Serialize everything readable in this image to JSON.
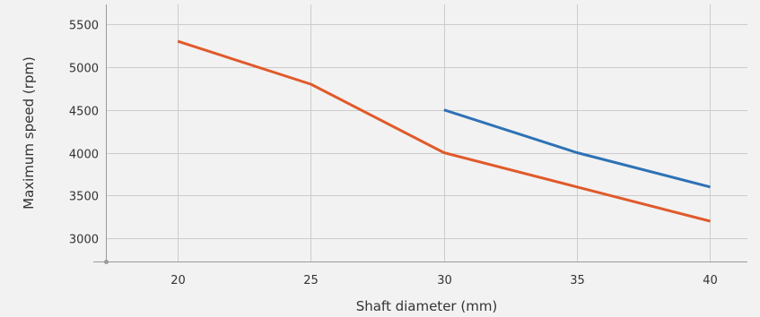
{
  "chart_data": {
    "type": "line",
    "title": "",
    "xlabel": "Shaft diameter (mm)",
    "ylabel": "Maximum speed (rpm)",
    "x_ticks": [
      20,
      25,
      30,
      35,
      40
    ],
    "y_ticks": [
      3000,
      3500,
      4000,
      4500,
      5000,
      5500
    ],
    "xlim": [
      17.3,
      41.4
    ],
    "ylim": [
      2730,
      5730
    ],
    "grid": true,
    "legend": "none",
    "series": [
      {
        "color": "#e05a2b",
        "points": [
          {
            "x": 20,
            "y": 5300
          },
          {
            "x": 25,
            "y": 4800
          },
          {
            "x": 30,
            "y": 4000
          },
          {
            "x": 35,
            "y": 3600
          },
          {
            "x": 40,
            "y": 3200
          }
        ]
      },
      {
        "color": "#2e72b6",
        "points": [
          {
            "x": 30,
            "y": 4500
          },
          {
            "x": 35,
            "y": 4000
          },
          {
            "x": 40,
            "y": 3600
          }
        ]
      }
    ]
  }
}
